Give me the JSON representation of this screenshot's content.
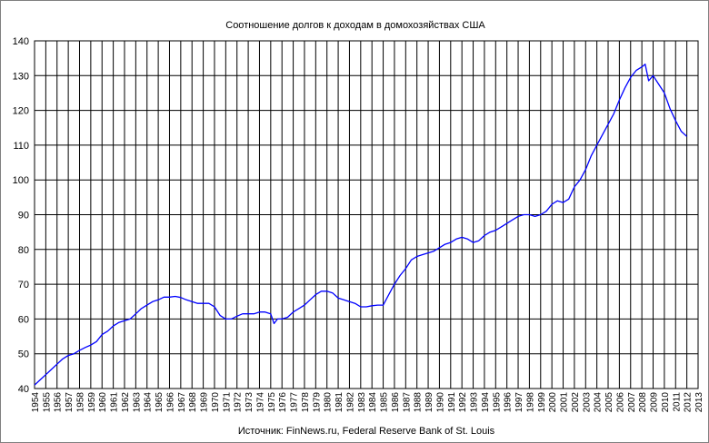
{
  "chart_data": {
    "type": "line",
    "title": "Соотношение долгов к доходам в домохозяйствах США",
    "source": "Источник: FinNews.ru, Federal Reserve Bank of St. Louis",
    "xlabel": "",
    "ylabel": "",
    "xlim": [
      1954,
      2013
    ],
    "ylim": [
      40,
      140
    ],
    "y_ticks": [
      40,
      50,
      60,
      70,
      80,
      90,
      100,
      110,
      120,
      130,
      140
    ],
    "x_ticks": [
      "1954",
      "1955",
      "1956",
      "1957",
      "1958",
      "1959",
      "1960",
      "1961",
      "1962",
      "1963",
      "1964",
      "1965",
      "1966",
      "1967",
      "1968",
      "1969",
      "1970",
      "1971",
      "1972",
      "1973",
      "1974",
      "1975",
      "1976",
      "1977",
      "1978",
      "1979",
      "1980",
      "1981",
      "1982",
      "1983",
      "1984",
      "1985",
      "1986",
      "1987",
      "1988",
      "1989",
      "1990",
      "1991",
      "1992",
      "1993",
      "1994",
      "1995",
      "1996",
      "1997",
      "1998",
      "1999",
      "2000",
      "2001",
      "2002",
      "2003",
      "2004",
      "2005",
      "2006",
      "2007",
      "2008",
      "2009",
      "2010",
      "2011",
      "2012",
      "2013"
    ],
    "grid": true,
    "legend": "none",
    "line_color": "#0000ff",
    "series": [
      {
        "name": "",
        "points": [
          [
            1954.0,
            41.0
          ],
          [
            1954.5,
            42.5
          ],
          [
            1955.0,
            44.0
          ],
          [
            1955.5,
            45.5
          ],
          [
            1956.0,
            47.0
          ],
          [
            1956.5,
            48.5
          ],
          [
            1957.0,
            49.5
          ],
          [
            1957.5,
            50.0
          ],
          [
            1958.0,
            51.0
          ],
          [
            1958.5,
            51.8
          ],
          [
            1959.0,
            52.5
          ],
          [
            1959.5,
            53.5
          ],
          [
            1960.0,
            55.5
          ],
          [
            1960.5,
            56.5
          ],
          [
            1961.0,
            58.0
          ],
          [
            1961.5,
            59.0
          ],
          [
            1962.0,
            59.5
          ],
          [
            1962.5,
            60.0
          ],
          [
            1963.0,
            61.5
          ],
          [
            1963.5,
            63.0
          ],
          [
            1964.0,
            64.0
          ],
          [
            1964.5,
            65.0
          ],
          [
            1965.0,
            65.5
          ],
          [
            1965.5,
            66.3
          ],
          [
            1966.0,
            66.3
          ],
          [
            1966.5,
            66.5
          ],
          [
            1967.0,
            66.2
          ],
          [
            1967.5,
            65.5
          ],
          [
            1968.0,
            65.0
          ],
          [
            1968.5,
            64.5
          ],
          [
            1969.0,
            64.5
          ],
          [
            1969.5,
            64.5
          ],
          [
            1970.0,
            63.5
          ],
          [
            1970.5,
            61.0
          ],
          [
            1971.0,
            60.0
          ],
          [
            1971.5,
            60.0
          ],
          [
            1972.0,
            60.8
          ],
          [
            1972.5,
            61.5
          ],
          [
            1973.0,
            61.5
          ],
          [
            1973.5,
            61.5
          ],
          [
            1974.0,
            62.0
          ],
          [
            1974.5,
            62.0
          ],
          [
            1975.0,
            61.5
          ],
          [
            1975.3,
            58.7
          ],
          [
            1975.6,
            60.0
          ],
          [
            1976.0,
            60.0
          ],
          [
            1976.5,
            60.5
          ],
          [
            1977.0,
            62.0
          ],
          [
            1977.5,
            63.0
          ],
          [
            1978.0,
            64.0
          ],
          [
            1978.5,
            65.5
          ],
          [
            1979.0,
            67.0
          ],
          [
            1979.5,
            68.0
          ],
          [
            1980.0,
            68.0
          ],
          [
            1980.5,
            67.5
          ],
          [
            1981.0,
            66.0
          ],
          [
            1981.5,
            65.5
          ],
          [
            1982.0,
            65.0
          ],
          [
            1982.5,
            64.5
          ],
          [
            1983.0,
            63.5
          ],
          [
            1983.5,
            63.5
          ],
          [
            1984.0,
            63.8
          ],
          [
            1984.5,
            64.0
          ],
          [
            1985.0,
            64.0
          ],
          [
            1985.5,
            67.0
          ],
          [
            1986.0,
            70.0
          ],
          [
            1986.5,
            72.5
          ],
          [
            1987.0,
            74.5
          ],
          [
            1987.5,
            77.0
          ],
          [
            1988.0,
            78.0
          ],
          [
            1988.5,
            78.5
          ],
          [
            1989.0,
            79.0
          ],
          [
            1989.5,
            79.5
          ],
          [
            1990.0,
            80.5
          ],
          [
            1990.5,
            81.5
          ],
          [
            1991.0,
            82.0
          ],
          [
            1991.5,
            83.0
          ],
          [
            1992.0,
            83.5
          ],
          [
            1992.5,
            83.0
          ],
          [
            1993.0,
            82.0
          ],
          [
            1993.5,
            82.5
          ],
          [
            1994.0,
            84.0
          ],
          [
            1994.5,
            85.0
          ],
          [
            1995.0,
            85.5
          ],
          [
            1995.5,
            86.5
          ],
          [
            1996.0,
            87.5
          ],
          [
            1996.5,
            88.5
          ],
          [
            1997.0,
            89.5
          ],
          [
            1997.5,
            90.0
          ],
          [
            1998.0,
            90.0
          ],
          [
            1998.5,
            89.5
          ],
          [
            1999.0,
            90.0
          ],
          [
            1999.5,
            91.0
          ],
          [
            2000.0,
            93.0
          ],
          [
            2000.5,
            94.0
          ],
          [
            2001.0,
            93.5
          ],
          [
            2001.5,
            94.5
          ],
          [
            2002.0,
            98.0
          ],
          [
            2002.5,
            100.0
          ],
          [
            2003.0,
            103.0
          ],
          [
            2003.5,
            107.0
          ],
          [
            2004.0,
            110.0
          ],
          [
            2004.5,
            113.0
          ],
          [
            2005.0,
            116.0
          ],
          [
            2005.5,
            119.0
          ],
          [
            2006.0,
            123.0
          ],
          [
            2006.5,
            126.5
          ],
          [
            2007.0,
            129.5
          ],
          [
            2007.5,
            131.5
          ],
          [
            2008.0,
            132.5
          ],
          [
            2008.3,
            133.3
          ],
          [
            2008.6,
            128.5
          ],
          [
            2009.0,
            130.0
          ],
          [
            2009.5,
            127.5
          ],
          [
            2010.0,
            125.0
          ],
          [
            2010.5,
            120.5
          ],
          [
            2011.0,
            117.0
          ],
          [
            2011.5,
            114.0
          ],
          [
            2012.0,
            112.5
          ]
        ]
      }
    ]
  }
}
